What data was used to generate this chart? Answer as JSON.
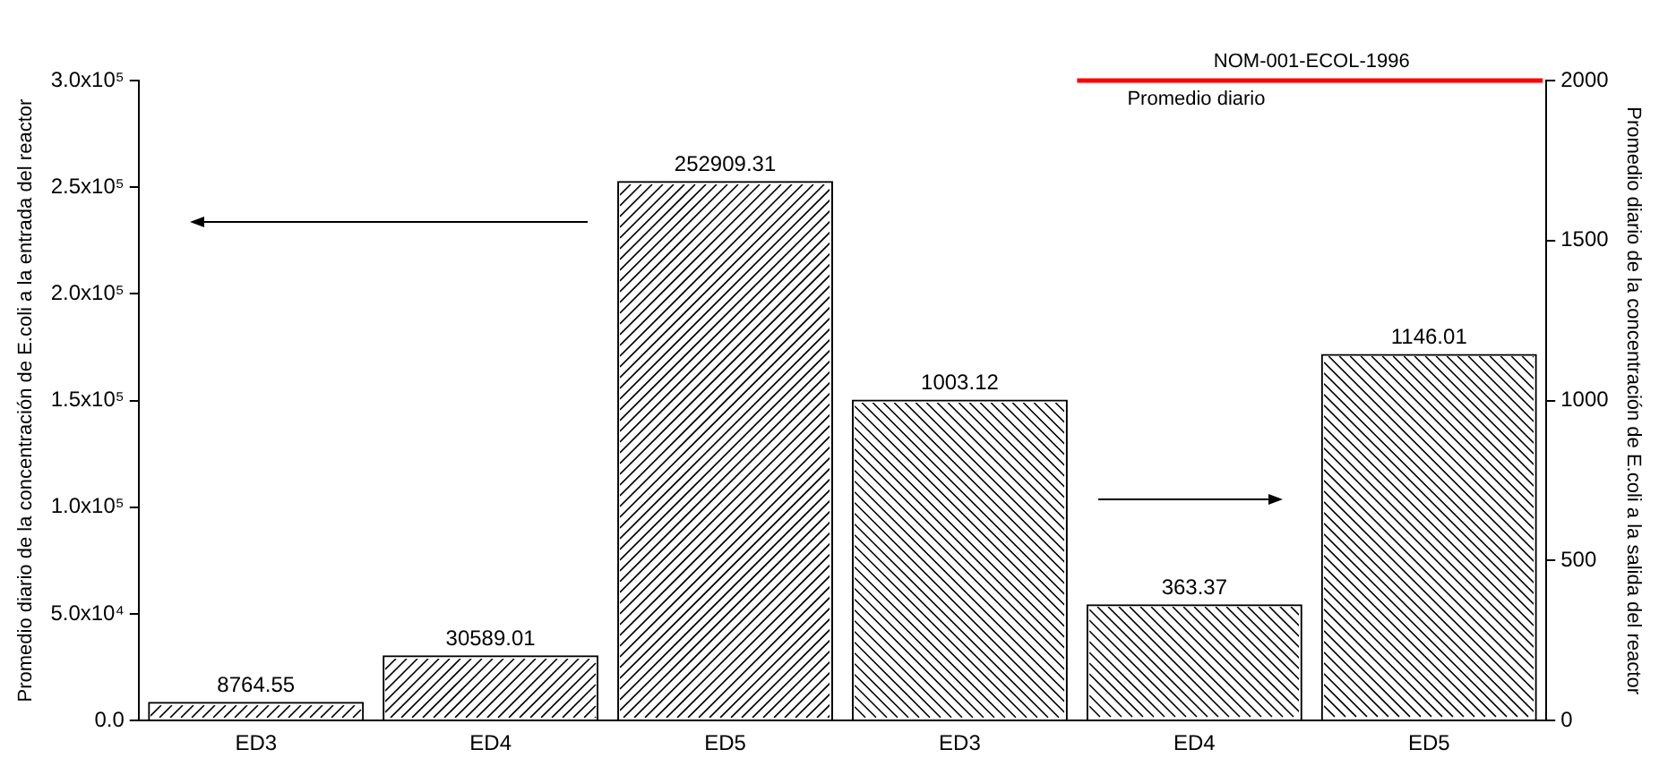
{
  "chart_data": {
    "type": "bar",
    "categories": [
      "ED3",
      "ED4",
      "ED5",
      "ED3",
      "ED4",
      "ED5"
    ],
    "series": [
      {
        "color": "#000000",
        "axis": "y",
        "values": [
          8764.55,
          30589.01,
          252909.31,
          null,
          null,
          null
        ]
      },
      {
        "color": "#000000",
        "axis": "y2",
        "values": [
          null,
          null,
          null,
          1003.12,
          363.37,
          1146.01
        ]
      }
    ],
    "ylabel": "Promedio diario de la concentración de E.coli a la entrada del reactor",
    "y2label": "Promedio diario de la concentración de E.coli a la salida del reactor",
    "ylim": [
      0,
      300000
    ],
    "yticks": [
      {
        "value": 0,
        "label": "0.0"
      },
      {
        "value": 50000,
        "label": "5.0x10⁴"
      },
      {
        "value": 100000,
        "label": "1.0x10⁵"
      },
      {
        "value": 150000,
        "label": "1.5x10⁵"
      },
      {
        "value": 200000,
        "label": "2.0x10⁵"
      },
      {
        "value": 250000,
        "label": "2.5x10⁵"
      },
      {
        "value": 300000,
        "label": "3.0x10⁵"
      }
    ],
    "y2lim": [
      0,
      2000
    ],
    "y2ticks": [
      0,
      500,
      1000,
      1500,
      2000
    ],
    "ref_lines": [
      {
        "axis": "y2",
        "value": 2000,
        "label": "NOM-001-ECOL-1996",
        "color": "#ff0000"
      }
    ],
    "annotations": [
      "Promedio diario"
    ],
    "data_labels": true,
    "grid": false,
    "legend": false
  }
}
